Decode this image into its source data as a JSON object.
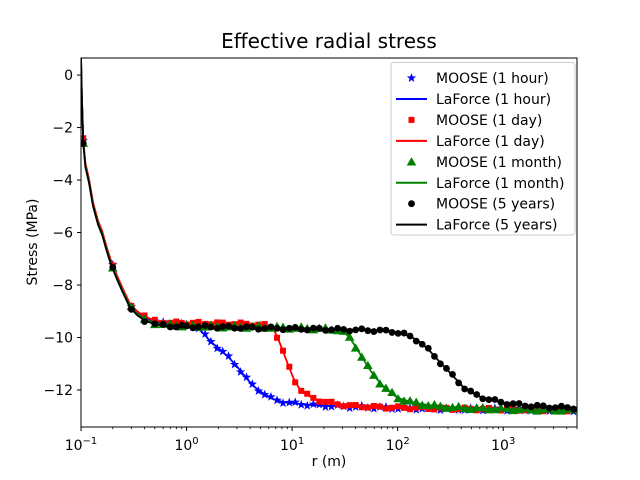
{
  "chart_data": {
    "type": "line",
    "title": "Effective radial stress",
    "xlabel": "r (m)",
    "ylabel": "Stress (MPa)",
    "xscale": "log",
    "xlim": [
      0.1,
      5000
    ],
    "ylim": [
      -13.41,
      0.65
    ],
    "grid": false,
    "legend_position": "upper right",
    "xticks": [
      {
        "value": 0.1,
        "exp": -1,
        "label": "10⁻¹"
      },
      {
        "value": 1,
        "exp": 0,
        "label": "10⁰"
      },
      {
        "value": 10,
        "exp": 1,
        "label": "10¹"
      },
      {
        "value": 100,
        "exp": 2,
        "label": "10²"
      },
      {
        "value": 1000,
        "exp": 3,
        "label": "10³"
      }
    ],
    "yticks": [
      {
        "value": 0,
        "label": "0"
      },
      {
        "value": -2,
        "label": "−2"
      },
      {
        "value": -4,
        "label": "−4"
      },
      {
        "value": -6,
        "label": "−6"
      },
      {
        "value": -8,
        "label": "−8"
      },
      {
        "value": -10,
        "label": "−10"
      },
      {
        "value": -12,
        "label": "−12"
      }
    ],
    "marker_r": [
      0.105,
      0.2,
      0.3,
      0.4,
      0.5,
      0.6,
      0.7,
      0.8,
      0.9,
      1.0,
      1.15,
      1.3,
      1.5,
      1.7,
      1.95,
      2.2,
      2.5,
      2.85,
      3.25,
      3.7,
      4.2,
      4.8,
      5.5,
      6.3,
      7.2,
      8.2,
      9.4,
      10.7,
      12.2,
      13.9,
      15.9,
      18.1,
      20.7,
      23.6,
      27,
      30.8,
      35.1,
      40,
      45.7,
      52.2,
      59.5,
      67.9,
      77.5,
      88.4,
      101,
      115,
      131,
      150,
      171,
      195,
      223,
      254,
      290,
      331,
      378,
      431,
      492,
      561,
      640,
      731,
      834,
      951,
      1086,
      1239,
      1413,
      1613,
      1840,
      2100,
      2396,
      2734,
      3119,
      3559,
      4061,
      4633
    ],
    "pairs": [
      {
        "time": "1 hour",
        "color": "#0000ff",
        "marker": "star",
        "moose_label": "MOOSE (1 hour)",
        "laforce_label": "LaForce (1 hour)",
        "points": [
          [
            0.1,
            0.65
          ],
          [
            0.102,
            -0.9
          ],
          [
            0.105,
            -2.5
          ],
          [
            0.11,
            -3.4
          ],
          [
            0.119,
            -4.0
          ],
          [
            0.13,
            -4.9
          ],
          [
            0.145,
            -5.6
          ],
          [
            0.159,
            -6.0
          ],
          [
            0.175,
            -6.6
          ],
          [
            0.19,
            -7.05
          ],
          [
            0.22,
            -7.7
          ],
          [
            0.25,
            -8.2
          ],
          [
            0.29,
            -8.76
          ],
          [
            0.34,
            -9.05
          ],
          [
            0.4,
            -9.25
          ],
          [
            0.5,
            -9.4
          ],
          [
            0.65,
            -9.48
          ],
          [
            0.8,
            -9.5
          ],
          [
            1.0,
            -9.52
          ],
          [
            1.15,
            -9.56
          ],
          [
            1.3,
            -9.65
          ],
          [
            1.45,
            -9.85
          ],
          [
            1.6,
            -10.05
          ],
          [
            1.8,
            -10.25
          ],
          [
            2.0,
            -10.4
          ],
          [
            2.5,
            -10.75
          ],
          [
            3.0,
            -11.1
          ],
          [
            3.6,
            -11.5
          ],
          [
            4.3,
            -11.85
          ],
          [
            5.2,
            -12.1
          ],
          [
            6.2,
            -12.3
          ],
          [
            7.5,
            -12.42
          ],
          [
            9.0,
            -12.48
          ],
          [
            11,
            -12.52
          ],
          [
            14,
            -12.56
          ],
          [
            20,
            -12.6
          ],
          [
            30,
            -12.63
          ],
          [
            50,
            -12.66
          ],
          [
            120,
            -12.7
          ],
          [
            400,
            -12.73
          ],
          [
            1500,
            -12.75
          ],
          [
            5000,
            -12.77
          ]
        ]
      },
      {
        "time": "1 day",
        "color": "#ff0000",
        "marker": "square",
        "moose_label": "MOOSE (1 day)",
        "laforce_label": "LaForce (1 day)",
        "points": [
          [
            0.1,
            0.65
          ],
          [
            0.102,
            -0.9
          ],
          [
            0.105,
            -2.45
          ],
          [
            0.11,
            -3.35
          ],
          [
            0.119,
            -3.95
          ],
          [
            0.13,
            -4.85
          ],
          [
            0.145,
            -5.55
          ],
          [
            0.159,
            -5.95
          ],
          [
            0.175,
            -6.55
          ],
          [
            0.19,
            -7.0
          ],
          [
            0.22,
            -7.65
          ],
          [
            0.25,
            -8.15
          ],
          [
            0.29,
            -8.7
          ],
          [
            0.34,
            -9.0
          ],
          [
            0.4,
            -9.2
          ],
          [
            0.5,
            -9.35
          ],
          [
            0.65,
            -9.42
          ],
          [
            0.8,
            -9.44
          ],
          [
            1.0,
            -9.45
          ],
          [
            2.0,
            -9.46
          ],
          [
            3.5,
            -9.48
          ],
          [
            5.0,
            -9.52
          ],
          [
            6.0,
            -9.55
          ],
          [
            6.6,
            -9.65
          ],
          [
            7.0,
            -9.85
          ],
          [
            7.8,
            -10.3
          ],
          [
            8.6,
            -10.75
          ],
          [
            9.4,
            -11.15
          ],
          [
            10.3,
            -11.55
          ],
          [
            11.5,
            -11.9
          ],
          [
            13,
            -12.12
          ],
          [
            15.5,
            -12.3
          ],
          [
            19,
            -12.42
          ],
          [
            25,
            -12.52
          ],
          [
            35,
            -12.6
          ],
          [
            60,
            -12.65
          ],
          [
            120,
            -12.68
          ],
          [
            300,
            -12.71
          ],
          [
            1000,
            -12.74
          ],
          [
            5000,
            -12.77
          ]
        ]
      },
      {
        "time": "1 month",
        "color": "#008000",
        "marker": "triangle",
        "moose_label": "MOOSE (1 month)",
        "laforce_label": "LaForce (1 month)",
        "points": [
          [
            0.1,
            0.65
          ],
          [
            0.102,
            -0.95
          ],
          [
            0.105,
            -2.55
          ],
          [
            0.11,
            -3.45
          ],
          [
            0.119,
            -4.05
          ],
          [
            0.13,
            -4.95
          ],
          [
            0.145,
            -5.65
          ],
          [
            0.159,
            -6.05
          ],
          [
            0.175,
            -6.65
          ],
          [
            0.19,
            -7.1
          ],
          [
            0.22,
            -7.75
          ],
          [
            0.25,
            -8.25
          ],
          [
            0.29,
            -8.8
          ],
          [
            0.34,
            -9.1
          ],
          [
            0.4,
            -9.3
          ],
          [
            0.5,
            -9.45
          ],
          [
            0.65,
            -9.52
          ],
          [
            0.8,
            -9.54
          ],
          [
            1.0,
            -9.55
          ],
          [
            2.0,
            -9.58
          ],
          [
            5.0,
            -9.6
          ],
          [
            10,
            -9.63
          ],
          [
            18,
            -9.66
          ],
          [
            23,
            -9.68
          ],
          [
            27,
            -9.7
          ],
          [
            31,
            -9.8
          ],
          [
            35,
            -10.0
          ],
          [
            40,
            -10.35
          ],
          [
            46,
            -10.75
          ],
          [
            53,
            -11.15
          ],
          [
            61,
            -11.5
          ],
          [
            71,
            -11.8
          ],
          [
            83,
            -12.05
          ],
          [
            100,
            -12.3
          ],
          [
            125,
            -12.42
          ],
          [
            160,
            -12.52
          ],
          [
            220,
            -12.6
          ],
          [
            320,
            -12.66
          ],
          [
            550,
            -12.7
          ],
          [
            1200,
            -12.73
          ],
          [
            3000,
            -12.76
          ],
          [
            5000,
            -12.77
          ]
        ]
      },
      {
        "time": "5 years",
        "color": "#000000",
        "marker": "circle",
        "moose_label": "MOOSE (5 years)",
        "laforce_label": "LaForce (5 years)",
        "points": [
          [
            0.1,
            0.65
          ],
          [
            0.102,
            -1.0
          ],
          [
            0.105,
            -2.6
          ],
          [
            0.11,
            -3.5
          ],
          [
            0.119,
            -4.1
          ],
          [
            0.13,
            -5.0
          ],
          [
            0.145,
            -5.7
          ],
          [
            0.159,
            -6.1
          ],
          [
            0.175,
            -6.7
          ],
          [
            0.19,
            -7.15
          ],
          [
            0.22,
            -7.8
          ],
          [
            0.25,
            -8.3
          ],
          [
            0.29,
            -8.85
          ],
          [
            0.34,
            -9.15
          ],
          [
            0.4,
            -9.35
          ],
          [
            0.5,
            -9.5
          ],
          [
            0.65,
            -9.56
          ],
          [
            0.8,
            -9.57
          ],
          [
            1.0,
            -9.58
          ],
          [
            2.0,
            -9.6
          ],
          [
            5.0,
            -9.64
          ],
          [
            10,
            -9.66
          ],
          [
            30,
            -9.7
          ],
          [
            60,
            -9.73
          ],
          [
            90,
            -9.77
          ],
          [
            110,
            -9.85
          ],
          [
            130,
            -9.95
          ],
          [
            160,
            -10.15
          ],
          [
            200,
            -10.5
          ],
          [
            240,
            -10.85
          ],
          [
            290,
            -11.2
          ],
          [
            350,
            -11.55
          ],
          [
            420,
            -11.9
          ],
          [
            500,
            -12.1
          ],
          [
            600,
            -12.25
          ],
          [
            720,
            -12.35
          ],
          [
            850,
            -12.42
          ],
          [
            1000,
            -12.48
          ],
          [
            1300,
            -12.55
          ],
          [
            1800,
            -12.6
          ],
          [
            2600,
            -12.64
          ],
          [
            3800,
            -12.67
          ],
          [
            5000,
            -12.68
          ]
        ]
      }
    ]
  }
}
